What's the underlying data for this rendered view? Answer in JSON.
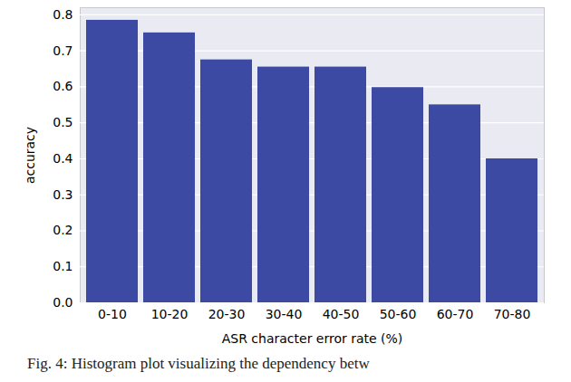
{
  "chart_data": {
    "type": "bar",
    "caption": "Fig. 4: Histogram plot visualizing the dependency betw",
    "x_label": "ASR character error rate (%)",
    "y_label": "accuracy",
    "categories": [
      "0-10",
      "10-20",
      "20-30",
      "30-40",
      "40-50",
      "50-60",
      "60-70",
      "70-80"
    ],
    "values": [
      0.785,
      0.75,
      0.675,
      0.655,
      0.655,
      0.598,
      0.55,
      0.4
    ],
    "color": "#3d4aa3",
    "ylim": [
      0,
      0.82
    ],
    "yticks": [
      {
        "value": 0,
        "label": "0.0"
      },
      0.1,
      0.2,
      0.3,
      0.4,
      0.5,
      0.6,
      0.7,
      0.8
    ],
    "grid": true
  }
}
